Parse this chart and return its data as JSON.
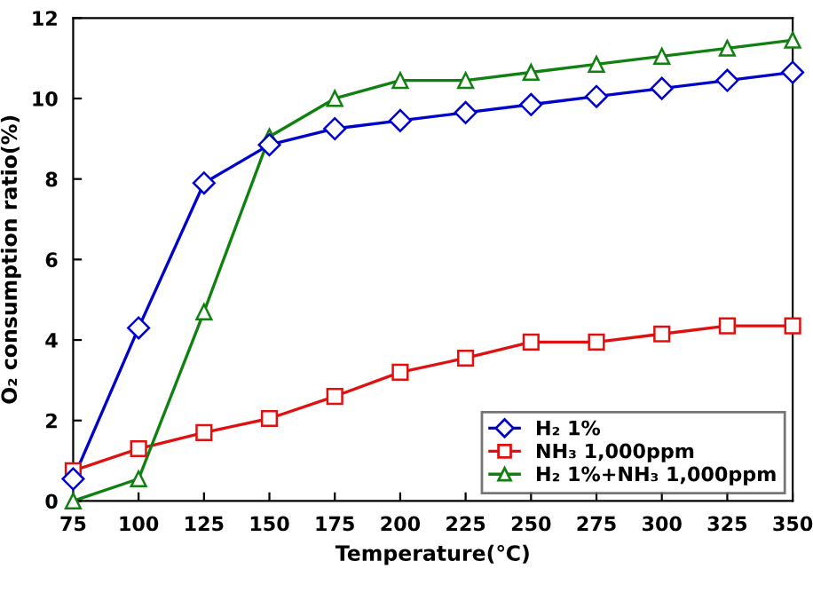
{
  "chart_data": {
    "type": "line",
    "xlabel": "Temperature(℃)",
    "ylabel": "O₂ consumption ratio(%)",
    "x": [
      75,
      100,
      125,
      150,
      175,
      200,
      225,
      250,
      275,
      300,
      325,
      350
    ],
    "xlim": [
      75,
      350
    ],
    "xticks": [
      75,
      100,
      125,
      150,
      175,
      200,
      225,
      250,
      275,
      300,
      325,
      350
    ],
    "ylim": [
      0,
      12
    ],
    "yticks": [
      0,
      2,
      4,
      6,
      8,
      10,
      12
    ],
    "grid": false,
    "legend": "bottom right",
    "line_style": "solid",
    "series": [
      {
        "name": "H₂ 1%",
        "color": "#0000cc",
        "marker": "diamond",
        "values": [
          0.55,
          4.3,
          7.9,
          8.85,
          9.25,
          9.45,
          9.65,
          9.85,
          10.05,
          10.25,
          10.45,
          10.65
        ]
      },
      {
        "name": "NH₃ 1,000ppm",
        "color": "#e01010",
        "marker": "square",
        "values": [
          0.75,
          1.3,
          1.7,
          2.05,
          2.6,
          3.2,
          3.55,
          3.95,
          3.95,
          4.15,
          4.35,
          4.35
        ]
      },
      {
        "name": "H₂ 1%+NH₃ 1,000ppm",
        "color": "#108010",
        "marker": "triangle",
        "values": [
          0,
          0.55,
          4.7,
          9.05,
          10.0,
          10.45,
          10.45,
          10.65,
          10.85,
          11.05,
          11.25,
          11.45
        ]
      }
    ]
  }
}
